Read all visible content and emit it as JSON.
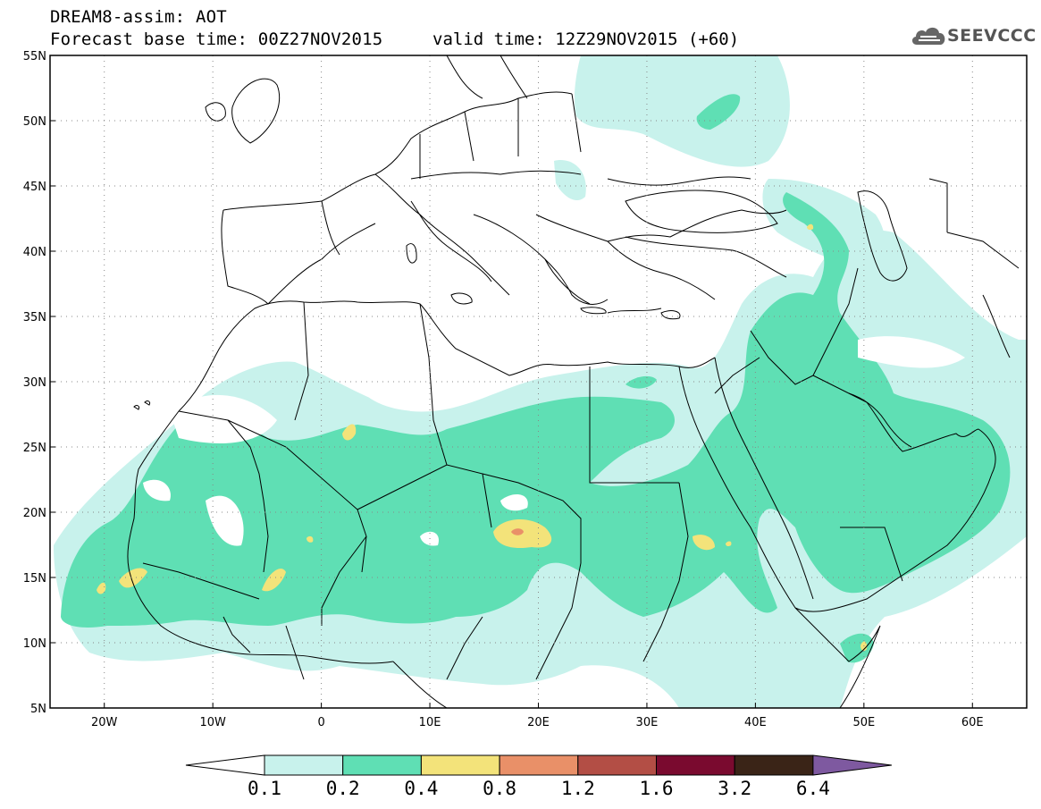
{
  "header": {
    "title": "DREAM8-assim: AOT",
    "base_time": "Forecast base time: 00Z27NOV2015",
    "valid_time": "valid time: 12Z29NOV2015 (+60)",
    "logo_text": "SEEVCCC"
  },
  "map": {
    "lon_range": [
      -25,
      65
    ],
    "lat_range": [
      5,
      55
    ],
    "lat_labels": [
      "55N",
      "50N",
      "45N",
      "40N",
      "35N",
      "30N",
      "25N",
      "20N",
      "15N",
      "10N",
      "5N"
    ],
    "lat_values": [
      55,
      50,
      45,
      40,
      35,
      30,
      25,
      20,
      15,
      10,
      5
    ],
    "lon_labels": [
      "20W",
      "10W",
      "0",
      "10E",
      "20E",
      "30E",
      "40E",
      "50E",
      "60E"
    ],
    "lon_values": [
      -20,
      -10,
      0,
      10,
      20,
      30,
      40,
      50,
      60
    ],
    "grid": true,
    "grid_style": "dotted"
  },
  "colorbar": {
    "levels": [
      "0.1",
      "0.2",
      "0.4",
      "0.8",
      "1.2",
      "1.6",
      "3.2",
      "6.4"
    ],
    "colors": [
      "#c8f2ec",
      "#5fdfb4",
      "#f3e37a",
      "#e99068",
      "#b34e45",
      "#7a0a2f",
      "#3a2417",
      "#7e59a0"
    ],
    "under_color": "#ffffff"
  }
}
